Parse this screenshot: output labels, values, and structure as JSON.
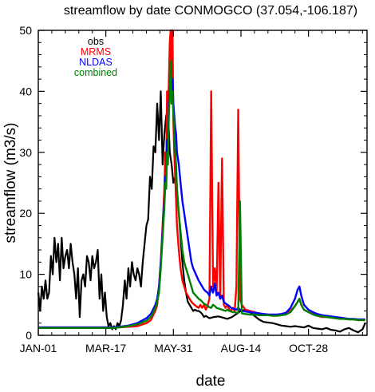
{
  "chart_data": {
    "type": "line",
    "title": "streamflow by date CONMOGCO (37.054,-106.187)",
    "xlabel": "date",
    "ylabel": "streamflow (m3/s)",
    "xlim": [
      0,
      365
    ],
    "ylim": [
      0,
      50
    ],
    "x_ticks": [
      {
        "day": 0,
        "label": "JAN-01"
      },
      {
        "day": 75,
        "label": "MAR-17"
      },
      {
        "day": 150,
        "label": "MAY-31"
      },
      {
        "day": 225,
        "label": "AUG-14"
      },
      {
        "day": 300,
        "label": "OCT-28"
      }
    ],
    "y_ticks": [
      0,
      10,
      20,
      30,
      40,
      50
    ],
    "grid": false,
    "legend_position": "top-left",
    "series": [
      {
        "name": "obs",
        "color": "#000000",
        "x": [
          0,
          2,
          4,
          6,
          8,
          10,
          12,
          14,
          16,
          18,
          20,
          22,
          24,
          26,
          28,
          30,
          32,
          34,
          36,
          38,
          40,
          42,
          44,
          46,
          48,
          50,
          52,
          54,
          56,
          58,
          60,
          62,
          64,
          66,
          68,
          70,
          72,
          74,
          76,
          78,
          80,
          82,
          84,
          86,
          88,
          90,
          92,
          94,
          96,
          98,
          100,
          102,
          104,
          106,
          108,
          110,
          112,
          114,
          116,
          118,
          120,
          122,
          124,
          126,
          128,
          130,
          132,
          134,
          136,
          138,
          140,
          142,
          144,
          146,
          148,
          150,
          152,
          154,
          156,
          158,
          160,
          162,
          164,
          166,
          168,
          170,
          172,
          174,
          176,
          178,
          180,
          182,
          184,
          186,
          188,
          190,
          195,
          200,
          205,
          210,
          215,
          220,
          225,
          230,
          235,
          240,
          245,
          250,
          255,
          260,
          265,
          270,
          275,
          280,
          285,
          290,
          295,
          300,
          305,
          310,
          315,
          320,
          325,
          330,
          335,
          340,
          345,
          350,
          355,
          360,
          363
        ],
        "y": [
          7,
          4,
          8,
          6,
          9,
          6,
          7,
          13,
          10,
          16,
          12,
          15,
          9,
          16,
          11,
          13,
          14,
          11,
          15,
          12,
          10,
          6,
          11,
          3,
          9,
          10,
          8,
          13,
          12,
          9,
          13,
          11,
          12,
          14,
          6,
          10,
          4,
          7,
          3,
          1.5,
          2,
          1,
          1.5,
          1,
          2,
          1.5,
          2.5,
          5,
          9,
          6,
          11,
          8,
          12,
          10,
          9,
          11,
          10,
          8,
          12,
          15,
          18,
          19,
          26,
          24,
          31,
          30,
          38,
          32,
          40,
          28,
          33,
          36,
          37,
          30,
          28,
          25,
          26,
          24,
          20,
          16,
          12,
          9,
          7,
          5.5,
          5,
          4.5,
          4,
          4.2,
          4,
          4,
          3.8,
          3.5,
          3,
          3.2,
          3,
          2.8,
          3,
          3.1,
          2.9,
          2.7,
          3,
          3.5,
          4,
          4.2,
          3.8,
          3.2,
          2.6,
          2.2,
          2.1,
          2,
          1.8,
          1.6,
          1.5,
          1.4,
          1.5,
          1.4,
          1.3,
          1.6,
          1.2,
          1.1,
          1,
          1.2,
          0.9,
          0.8,
          0.6,
          1,
          1.2,
          0.8,
          0.5,
          1,
          2
        ]
      },
      {
        "name": "MRMS",
        "color": "#ff0000",
        "x": [
          0,
          10,
          20,
          30,
          40,
          50,
          60,
          70,
          80,
          90,
          100,
          110,
          120,
          125,
          130,
          132,
          134,
          136,
          138,
          140,
          141,
          142,
          143,
          144,
          145,
          146,
          147,
          148,
          149,
          150,
          151,
          152,
          153,
          154,
          156,
          158,
          160,
          162,
          164,
          166,
          168,
          170,
          172,
          175,
          178,
          180,
          182,
          184,
          186,
          188,
          190,
          192,
          194,
          196,
          198,
          200,
          202,
          204,
          206,
          208,
          210,
          212,
          214,
          216,
          218,
          220,
          222,
          224,
          226,
          230,
          235,
          240,
          245,
          250,
          255,
          260,
          265,
          270,
          275,
          280,
          285,
          288,
          290,
          292,
          295,
          300,
          305,
          310,
          315,
          320,
          325,
          330,
          335,
          340,
          345,
          350,
          355,
          360,
          363
        ],
        "y": [
          1.3,
          1.3,
          1.3,
          1.3,
          1.3,
          1.3,
          1.3,
          1.3,
          1.3,
          1.3,
          1.4,
          1.5,
          2,
          2.5,
          4,
          5,
          8,
          12,
          18,
          24,
          30,
          26,
          40,
          34,
          42,
          48,
          50,
          38,
          50,
          35,
          30,
          26,
          22,
          18,
          14,
          11,
          9,
          8,
          7,
          6.5,
          6,
          5.5,
          5.2,
          4.8,
          4.5,
          5,
          4.5,
          5,
          4.2,
          4.8,
          6,
          40,
          8,
          11,
          7,
          25,
          6,
          29,
          5,
          4.5,
          5,
          4.2,
          4,
          4.5,
          4,
          8,
          37,
          6,
          5,
          4.2,
          4,
          3.8,
          3.6,
          3.5,
          3.4,
          3.3,
          3.3,
          3.4,
          3.6,
          4,
          4.8,
          5.5,
          6,
          5,
          4.2,
          3.8,
          3.5,
          3.2,
          3,
          3,
          2.9,
          2.8,
          2.8,
          2.7,
          2.6,
          2.6,
          2.5,
          2.5,
          2.5
        ]
      },
      {
        "name": "NLDAS",
        "color": "#0000ff",
        "x": [
          0,
          10,
          20,
          30,
          40,
          50,
          60,
          70,
          80,
          90,
          100,
          110,
          120,
          125,
          130,
          132,
          134,
          136,
          138,
          140,
          141,
          142,
          143,
          144,
          145,
          146,
          147,
          148,
          149,
          150,
          151,
          152,
          153,
          154,
          156,
          158,
          160,
          162,
          164,
          166,
          168,
          170,
          172,
          175,
          178,
          180,
          182,
          184,
          186,
          188,
          190,
          192,
          194,
          196,
          198,
          200,
          202,
          204,
          206,
          208,
          210,
          212,
          214,
          216,
          218,
          220,
          222,
          224,
          226,
          230,
          235,
          240,
          245,
          250,
          255,
          260,
          265,
          270,
          275,
          280,
          285,
          288,
          290,
          292,
          295,
          300,
          305,
          310,
          315,
          320,
          325,
          330,
          335,
          340,
          345,
          350,
          355,
          360,
          363
        ],
        "y": [
          1.3,
          1.3,
          1.3,
          1.3,
          1.3,
          1.3,
          1.3,
          1.3,
          1.3,
          1.4,
          1.6,
          2,
          2.8,
          3.5,
          5,
          6,
          8,
          12,
          17,
          22,
          26,
          25,
          32,
          30,
          38,
          40,
          44,
          40,
          42,
          38,
          36,
          34,
          33,
          30,
          28,
          25,
          22,
          20,
          18,
          16,
          14,
          12,
          11,
          10,
          9,
          8.5,
          8,
          7.5,
          7.2,
          7,
          6.5,
          8,
          7,
          8.5,
          6.5,
          7,
          6,
          6.5,
          5.5,
          5.2,
          5,
          4.8,
          4.5,
          4.4,
          4.3,
          4.2,
          4.5,
          4.2,
          4,
          3.9,
          3.8,
          3.7,
          3.6,
          3.5,
          3.4,
          3.4,
          3.4,
          3.5,
          3.7,
          4.5,
          6,
          7.5,
          8,
          6.5,
          5,
          4.2,
          3.8,
          3.5,
          3.3,
          3.2,
          3.1,
          3,
          2.9,
          2.8,
          2.7,
          2.7,
          2.6,
          2.6,
          2.6
        ]
      },
      {
        "name": "combined",
        "color": "#008000",
        "x": [
          0,
          10,
          20,
          30,
          40,
          50,
          60,
          70,
          80,
          90,
          100,
          110,
          120,
          125,
          130,
          132,
          134,
          136,
          138,
          140,
          141,
          142,
          143,
          144,
          145,
          146,
          147,
          148,
          149,
          150,
          151,
          152,
          153,
          154,
          156,
          158,
          160,
          162,
          164,
          166,
          168,
          170,
          172,
          175,
          178,
          180,
          182,
          184,
          186,
          188,
          190,
          192,
          194,
          196,
          198,
          200,
          202,
          204,
          206,
          208,
          210,
          212,
          214,
          216,
          218,
          220,
          222,
          224,
          226,
          230,
          235,
          240,
          245,
          250,
          255,
          260,
          265,
          270,
          275,
          280,
          285,
          288,
          290,
          292,
          295,
          300,
          305,
          310,
          315,
          320,
          325,
          330,
          335,
          340,
          345,
          350,
          355,
          360,
          363
        ],
        "y": [
          1.2,
          1.2,
          1.2,
          1.2,
          1.2,
          1.2,
          1.2,
          1.2,
          1.2,
          1.3,
          1.5,
          1.8,
          2.4,
          3,
          4.5,
          5.5,
          7,
          11,
          16,
          21,
          25,
          24,
          30,
          28,
          37,
          39,
          45,
          38,
          40,
          36,
          33,
          30,
          28,
          24,
          20,
          17,
          14,
          12,
          11,
          10,
          9,
          8,
          7,
          6.5,
          6,
          5.8,
          5.5,
          5.2,
          5,
          4.8,
          4.6,
          4.5,
          5,
          4.8,
          4.5,
          4.4,
          4.3,
          4.2,
          4.1,
          4,
          4.2,
          4,
          3.9,
          3.8,
          3.8,
          3.7,
          3.7,
          22,
          3.6,
          3.5,
          3.4,
          3.4,
          3.3,
          3.3,
          3.3,
          3.2,
          3.2,
          3.3,
          3.4,
          3.8,
          4.8,
          5.5,
          6,
          5,
          4.2,
          3.8,
          3.4,
          3.2,
          3.1,
          3,
          2.9,
          2.8,
          2.7,
          2.7,
          2.6,
          2.6,
          2.5,
          2.5,
          2.5
        ]
      }
    ]
  }
}
